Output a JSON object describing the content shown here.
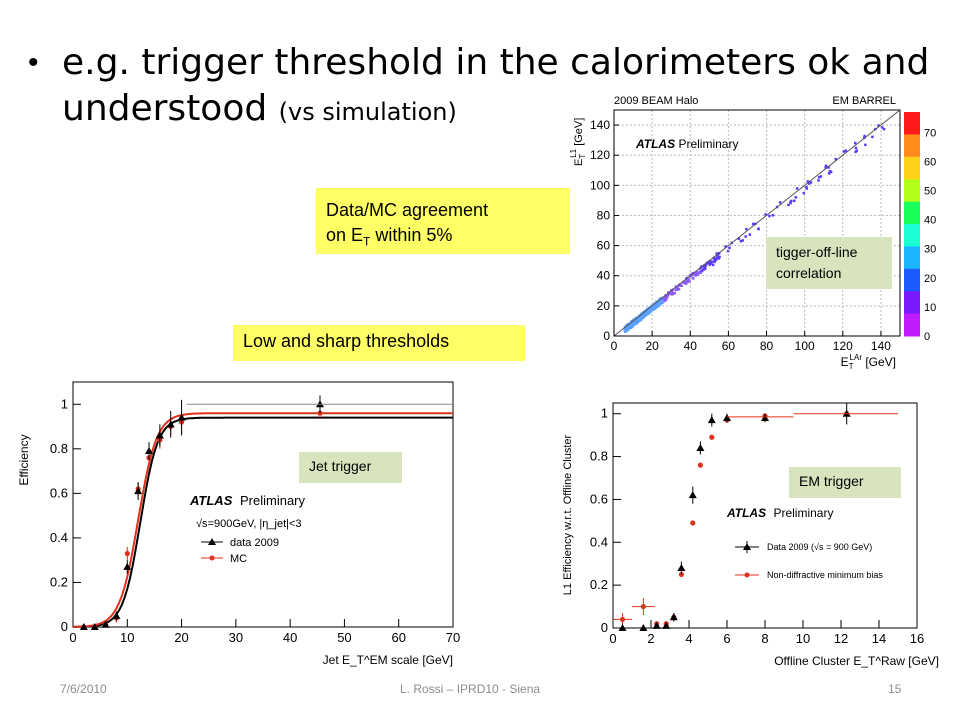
{
  "slide": {
    "bullet": "•",
    "title_main": "e.g. trigger threshold in the calorimeters ok and understood",
    "title_small": "(vs simulation)",
    "note_agreement_line1": "Data/MC agreement",
    "note_agreement_line2_pre": "on E",
    "note_agreement_sub": "T",
    "note_agreement_line2_post": " within 5%",
    "note_thresholds": "Low and sharp thresholds",
    "note_correlation_line1": "tigger-off-line",
    "note_correlation_line2": "correlation",
    "note_jet": "Jet trigger",
    "note_em": "EM trigger"
  },
  "footer": {
    "date": "7/6/2010",
    "author": "L. Rossi  – IPRD10 - Siena",
    "page": "15"
  },
  "colors": {
    "data": "#000000",
    "mc": "#e0301e",
    "yellow": "#ffff66",
    "green": "#d7e4bd"
  },
  "chart_data": [
    {
      "type": "scatter",
      "corner_left": "2009 BEAM Halo",
      "corner_right": "EM BARREL",
      "atlas": "ATLAS",
      "atlas_sub": "Preliminary",
      "xlabel_pre": "E",
      "xlabel_sub": "T",
      "xlabel_sup": "LAr",
      "xlabel_post": " [GeV]",
      "ylabel_pre": "E",
      "ylabel_sub": "T",
      "ylabel_sup": "L1",
      "ylabel_post": " [GeV]",
      "xlim": [
        0,
        150
      ],
      "ylim": [
        0,
        150
      ],
      "xticks": [
        0,
        20,
        40,
        60,
        80,
        100,
        120,
        140
      ],
      "yticks": [
        0,
        20,
        40,
        60,
        80,
        100,
        120,
        140
      ],
      "colorbar_ticks": [
        0,
        10,
        20,
        30,
        40,
        50,
        60,
        70
      ],
      "grid": true,
      "fit_line": [
        [
          0,
          0
        ],
        [
          150,
          150
        ]
      ]
    },
    {
      "type": "line",
      "atlas": "ATLAS",
      "atlas_sub": "Preliminary",
      "annotation": "√s=900GeV, |η_jet|<3",
      "xlabel": "Jet E_T^EM scale [GeV]",
      "ylabel": "Efficiency",
      "xlim": [
        0,
        70
      ],
      "ylim": [
        0,
        1.1
      ],
      "xticks": [
        0,
        10,
        20,
        30,
        40,
        50,
        60,
        70
      ],
      "yticks": [
        0,
        0.2,
        0.4,
        0.6,
        0.8,
        1
      ],
      "legend": "center-right",
      "series": [
        {
          "name": "data 2009",
          "x": [
            2,
            4,
            6,
            8,
            10,
            12,
            14,
            16,
            18,
            20,
            45.5
          ],
          "y": [
            0,
            0,
            0.01,
            0.05,
            0.27,
            0.61,
            0.79,
            0.86,
            0.91,
            0.94,
            1.0
          ],
          "err": [
            0,
            0,
            0.01,
            0.02,
            0.03,
            0.04,
            0.04,
            0.05,
            0.06,
            0.08,
            0.04
          ]
        },
        {
          "name": "MC",
          "x": [
            2,
            4,
            6,
            8,
            10,
            12,
            14,
            16,
            18,
            20,
            45.5
          ],
          "y": [
            0,
            0,
            0.01,
            0.04,
            0.33,
            0.62,
            0.76,
            0.84,
            0.9,
            0.92,
            0.96
          ],
          "err": [
            0,
            0,
            0.01,
            0.02,
            0.03,
            0.03,
            0.03,
            0.04,
            0.04,
            0.05,
            0.02
          ]
        }
      ]
    },
    {
      "type": "scatter",
      "atlas": "ATLAS",
      "atlas_sub": "Preliminary",
      "xlabel": "Offline Cluster E_T^Raw [GeV]",
      "ylabel": "L1 Efficiency w.r.t. Offline Cluster",
      "xlim": [
        0,
        16
      ],
      "ylim": [
        0,
        1.05
      ],
      "xticks": [
        0,
        2,
        4,
        6,
        8,
        10,
        12,
        14,
        16
      ],
      "yticks": [
        0,
        0.2,
        0.4,
        0.6,
        0.8,
        1
      ],
      "legend": "bottom-right",
      "series": [
        {
          "name": "Data 2009 (√s = 900 GeV)",
          "x": [
            0.5,
            1.6,
            2.3,
            2.8,
            3.2,
            3.6,
            4.2,
            4.6,
            5.2,
            6.0,
            8.0,
            12.3
          ],
          "y": [
            0,
            0,
            0.01,
            0.01,
            0.05,
            0.28,
            0.62,
            0.84,
            0.97,
            0.98,
            0.98,
            1.0
          ],
          "err": [
            0,
            0,
            0.01,
            0.01,
            0.02,
            0.03,
            0.04,
            0.03,
            0.03,
            0.02,
            0.02,
            0.05
          ]
        },
        {
          "name": "Non-diffractive minimum bias",
          "x": [
            0.5,
            1.6,
            2.3,
            2.8,
            3.2,
            3.6,
            4.2,
            4.6,
            5.2,
            6.0,
            8.0,
            12.3
          ],
          "y": [
            0.04,
            0.1,
            0.02,
            0.02,
            0.05,
            0.25,
            0.49,
            0.76,
            0.89,
            0.97,
            0.99,
            1.0
          ],
          "err": [
            0.03,
            0.04,
            0.01,
            0.01,
            0.01,
            0.01,
            0.01,
            0.01,
            0.01,
            0.01,
            0.01,
            0.01
          ]
        }
      ]
    }
  ]
}
